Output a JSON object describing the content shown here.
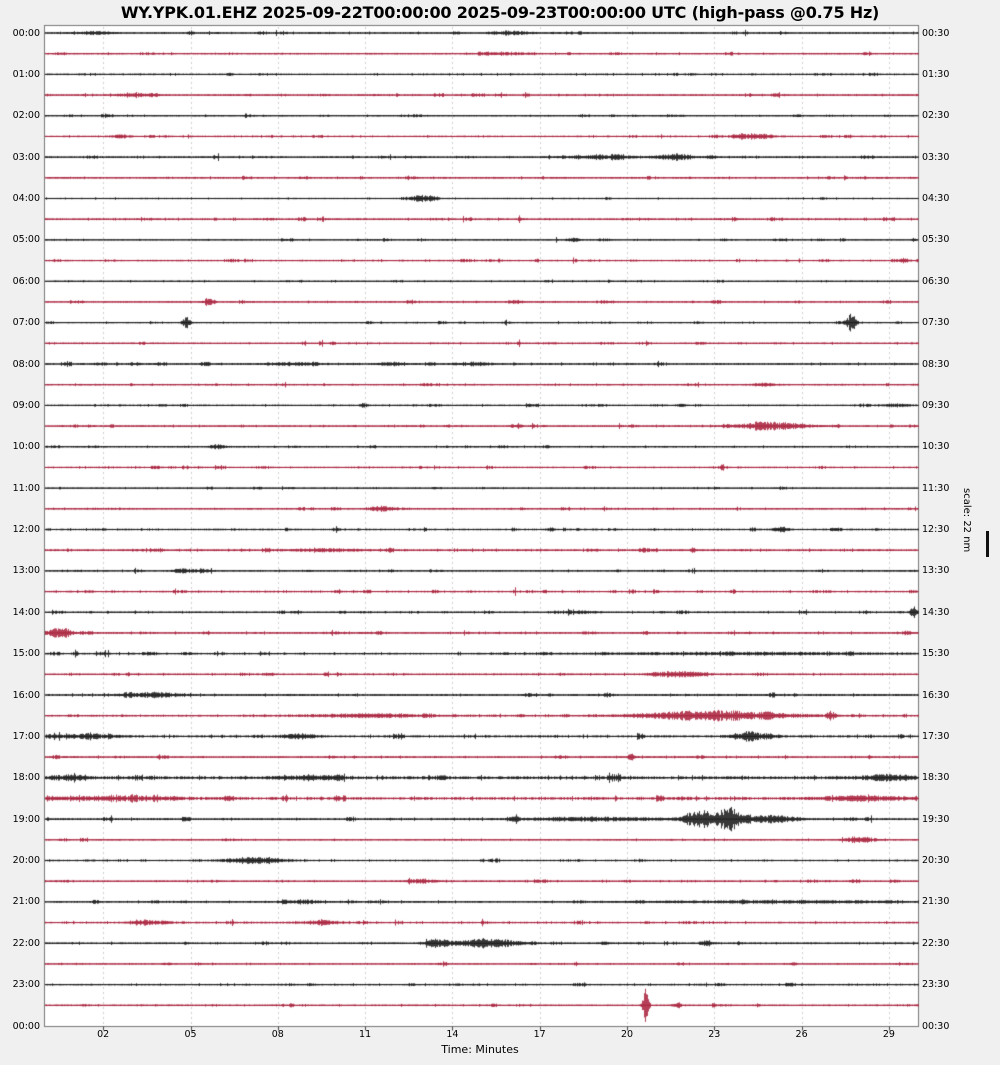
{
  "colors": {
    "background": "#f0f0f0",
    "plot_bg": "#ffffff",
    "border": "#777777",
    "grid": "#d0d0d0",
    "tick": "#444444",
    "trace_black": "#1c1c1c",
    "trace_red": "#ab2540"
  },
  "chart_data": {
    "type": "line",
    "subtype": "helicorder-seismogram",
    "title": "WY.YPK.01.EHZ 2025-09-22T00:00:00 2025-09-23T00:00:00 UTC (high-pass @0.75 Hz)",
    "xlabel": "Time: Minutes",
    "x_tick_labels": [
      "02",
      "05",
      "08",
      "11",
      "14",
      "17",
      "20",
      "23",
      "26",
      "29"
    ],
    "x_range_minutes": [
      0,
      30
    ],
    "minutes_per_line": 30,
    "num_lines": 48,
    "scale_label": "scale: 22 nm",
    "left_time_labels": [
      "00:00",
      "01:00",
      "02:00",
      "03:00",
      "04:00",
      "05:00",
      "06:00",
      "07:00",
      "08:00",
      "09:00",
      "10:00",
      "11:00",
      "12:00",
      "13:00",
      "14:00",
      "15:00",
      "16:00",
      "17:00",
      "18:00",
      "19:00",
      "20:00",
      "21:00",
      "22:00",
      "23:00",
      "00:00"
    ],
    "right_time_labels": [
      "00:30",
      "01:30",
      "02:30",
      "03:30",
      "04:30",
      "05:30",
      "06:30",
      "07:30",
      "08:30",
      "09:30",
      "10:30",
      "11:30",
      "12:30",
      "13:30",
      "14:30",
      "15:30",
      "16:30",
      "17:30",
      "18:30",
      "19:30",
      "20:30",
      "21:30",
      "22:30",
      "23:30",
      "00:30"
    ],
    "rows": [
      {
        "utc": "00:00",
        "color": "black",
        "noise": 0.8,
        "events": [
          [
            1.0,
            2.4,
            1.6
          ],
          [
            15.2,
            16.7,
            2.2
          ]
        ]
      },
      {
        "utc": "00:30",
        "color": "red",
        "noise": 0.8,
        "events": [
          [
            14.8,
            16.9,
            1.2
          ]
        ]
      },
      {
        "utc": "01:00",
        "color": "black",
        "noise": 0.8,
        "events": []
      },
      {
        "utc": "01:30",
        "color": "red",
        "noise": 0.8,
        "events": [
          [
            2.3,
            4.0,
            1.5
          ]
        ]
      },
      {
        "utc": "02:00",
        "color": "black",
        "noise": 0.7,
        "events": []
      },
      {
        "utc": "02:30",
        "color": "red",
        "noise": 0.8,
        "events": [
          [
            2.2,
            2.9,
            2.0
          ],
          [
            23.5,
            25.2,
            2.6
          ]
        ]
      },
      {
        "utc": "03:00",
        "color": "black",
        "noise": 0.9,
        "events": [
          [
            17.5,
            20.8,
            1.4
          ],
          [
            21.0,
            22.3,
            3.2
          ],
          [
            22.7,
            23.1,
            1.8
          ]
        ]
      },
      {
        "utc": "03:30",
        "color": "red",
        "noise": 0.9,
        "events": []
      },
      {
        "utc": "04:00",
        "color": "black",
        "noise": 0.7,
        "events": [
          [
            12.4,
            13.5,
            3.0
          ]
        ]
      },
      {
        "utc": "04:30",
        "color": "red",
        "noise": 0.9,
        "events": []
      },
      {
        "utc": "05:00",
        "color": "black",
        "noise": 0.7,
        "events": [
          [
            18.0,
            18.4,
            1.5
          ]
        ]
      },
      {
        "utc": "05:30",
        "color": "red",
        "noise": 0.8,
        "events": [
          [
            29.3,
            29.7,
            2.8
          ]
        ]
      },
      {
        "utc": "06:00",
        "color": "black",
        "noise": 0.7,
        "events": []
      },
      {
        "utc": "06:30",
        "color": "red",
        "noise": 0.8,
        "events": [
          [
            5.4,
            5.8,
            2.4
          ],
          [
            16.1,
            16.5,
            1.4
          ]
        ]
      },
      {
        "utc": "07:00",
        "color": "black",
        "noise": 0.7,
        "events": [
          [
            4.7,
            5.0,
            6.5
          ],
          [
            27.5,
            27.9,
            9.0
          ]
        ]
      },
      {
        "utc": "07:30",
        "color": "red",
        "noise": 0.8,
        "events": []
      },
      {
        "utc": "08:00",
        "color": "black",
        "noise": 0.9,
        "events": [
          [
            7.7,
            9.4,
            1.5
          ],
          [
            11.3,
            12.5,
            1.5
          ],
          [
            14.0,
            15.4,
            1.6
          ]
        ]
      },
      {
        "utc": "08:30",
        "color": "red",
        "noise": 0.8,
        "events": [
          [
            24.3,
            25.2,
            1.5
          ]
        ]
      },
      {
        "utc": "09:00",
        "color": "black",
        "noise": 0.8,
        "events": [
          [
            10.8,
            11.1,
            2.0
          ],
          [
            28.6,
            29.8,
            1.4
          ]
        ]
      },
      {
        "utc": "09:30",
        "color": "red",
        "noise": 0.8,
        "events": [
          [
            23.6,
            26.4,
            3.6
          ]
        ]
      },
      {
        "utc": "10:00",
        "color": "black",
        "noise": 0.8,
        "events": [
          [
            5.6,
            6.2,
            2.0
          ]
        ]
      },
      {
        "utc": "10:30",
        "color": "red",
        "noise": 0.8,
        "events": []
      },
      {
        "utc": "11:00",
        "color": "black",
        "noise": 0.7,
        "events": []
      },
      {
        "utc": "11:30",
        "color": "red",
        "noise": 0.8,
        "events": [
          [
            11.1,
            11.9,
            2.4
          ]
        ]
      },
      {
        "utc": "12:00",
        "color": "black",
        "noise": 0.9,
        "events": [
          [
            17.2,
            17.5,
            1.8
          ],
          [
            25.0,
            25.6,
            2.4
          ]
        ]
      },
      {
        "utc": "12:30",
        "color": "red",
        "noise": 1.0,
        "events": [
          [
            3.7,
            4.1,
            1.4
          ],
          [
            8.1,
            11.0,
            1.4
          ],
          [
            20.4,
            20.7,
            1.8
          ]
        ]
      },
      {
        "utc": "13:00",
        "color": "black",
        "noise": 0.8,
        "events": [
          [
            4.4,
            5.6,
            1.4
          ]
        ]
      },
      {
        "utc": "13:30",
        "color": "red",
        "noise": 0.9,
        "events": []
      },
      {
        "utc": "14:00",
        "color": "black",
        "noise": 0.8,
        "events": [
          [
            17.9,
            19.1,
            1.4
          ],
          [
            29.7,
            30.0,
            5.5
          ]
        ]
      },
      {
        "utc": "14:30",
        "color": "red",
        "noise": 0.9,
        "events": [
          [
            0.0,
            1.0,
            4.5
          ]
        ]
      },
      {
        "utc": "15:00",
        "color": "black",
        "noise": 0.9,
        "events": [
          [
            18.0,
            30.0,
            1.2
          ]
        ]
      },
      {
        "utc": "15:30",
        "color": "red",
        "noise": 0.9,
        "events": [
          [
            20.8,
            22.9,
            2.8
          ]
        ]
      },
      {
        "utc": "16:00",
        "color": "black",
        "noise": 1.0,
        "events": [
          [
            2.6,
            4.8,
            2.4
          ]
        ]
      },
      {
        "utc": "16:30",
        "color": "red",
        "noise": 0.9,
        "events": [
          [
            8.7,
            13.5,
            1.8
          ],
          [
            20.2,
            25.8,
            5.0
          ],
          [
            26.8,
            27.2,
            4.0
          ]
        ]
      },
      {
        "utc": "17:00",
        "color": "black",
        "noise": 1.1,
        "events": [
          [
            0.0,
            2.7,
            1.8
          ],
          [
            8.0,
            9.4,
            2.2
          ],
          [
            23.5,
            25.2,
            3.5
          ]
        ]
      },
      {
        "utc": "17:30",
        "color": "red",
        "noise": 0.9,
        "events": [
          [
            20.0,
            20.3,
            3.5
          ]
        ]
      },
      {
        "utc": "18:00",
        "color": "black",
        "noise": 1.5,
        "events": [
          [
            0.0,
            1.6,
            2.2
          ],
          [
            8.0,
            10.3,
            2.0
          ],
          [
            27.9,
            30.0,
            2.6
          ]
        ]
      },
      {
        "utc": "18:30",
        "color": "red",
        "noise": 1.4,
        "events": [
          [
            0.0,
            4.8,
            2.0
          ],
          [
            26.3,
            30.0,
            2.2
          ]
        ]
      },
      {
        "utc": "19:00",
        "color": "black",
        "noise": 1.0,
        "events": [
          [
            16.0,
            21.8,
            1.8
          ],
          [
            21.9,
            23.0,
            9.5
          ],
          [
            23.0,
            24.0,
            12.0
          ],
          [
            24.0,
            25.9,
            4.0
          ]
        ]
      },
      {
        "utc": "19:30",
        "color": "red",
        "noise": 0.8,
        "events": [
          [
            27.5,
            28.6,
            2.8
          ]
        ]
      },
      {
        "utc": "20:00",
        "color": "black",
        "noise": 0.8,
        "events": [
          [
            6.0,
            8.4,
            3.0
          ]
        ]
      },
      {
        "utc": "20:30",
        "color": "red",
        "noise": 0.8,
        "events": [
          [
            12.3,
            13.6,
            1.8
          ]
        ]
      },
      {
        "utc": "21:00",
        "color": "black",
        "noise": 0.9,
        "events": [
          [
            8.2,
            9.5,
            1.8
          ],
          [
            20.0,
            30.0,
            1.2
          ]
        ]
      },
      {
        "utc": "21:30",
        "color": "red",
        "noise": 0.9,
        "events": [
          [
            2.8,
            4.5,
            1.8
          ],
          [
            8.6,
            10.3,
            1.8
          ]
        ]
      },
      {
        "utc": "22:00",
        "color": "black",
        "noise": 0.9,
        "events": [
          [
            13.1,
            14.0,
            3.5
          ],
          [
            14.0,
            16.4,
            4.5
          ],
          [
            22.6,
            23.0,
            2.0
          ]
        ]
      },
      {
        "utc": "22:30",
        "color": "red",
        "noise": 0.7,
        "events": []
      },
      {
        "utc": "23:00",
        "color": "black",
        "noise": 0.8,
        "events": []
      },
      {
        "utc": "23:30",
        "color": "red",
        "noise": 0.8,
        "events": [
          [
            20.5,
            20.75,
            17.0
          ],
          [
            21.5,
            21.9,
            2.2
          ]
        ]
      }
    ]
  }
}
